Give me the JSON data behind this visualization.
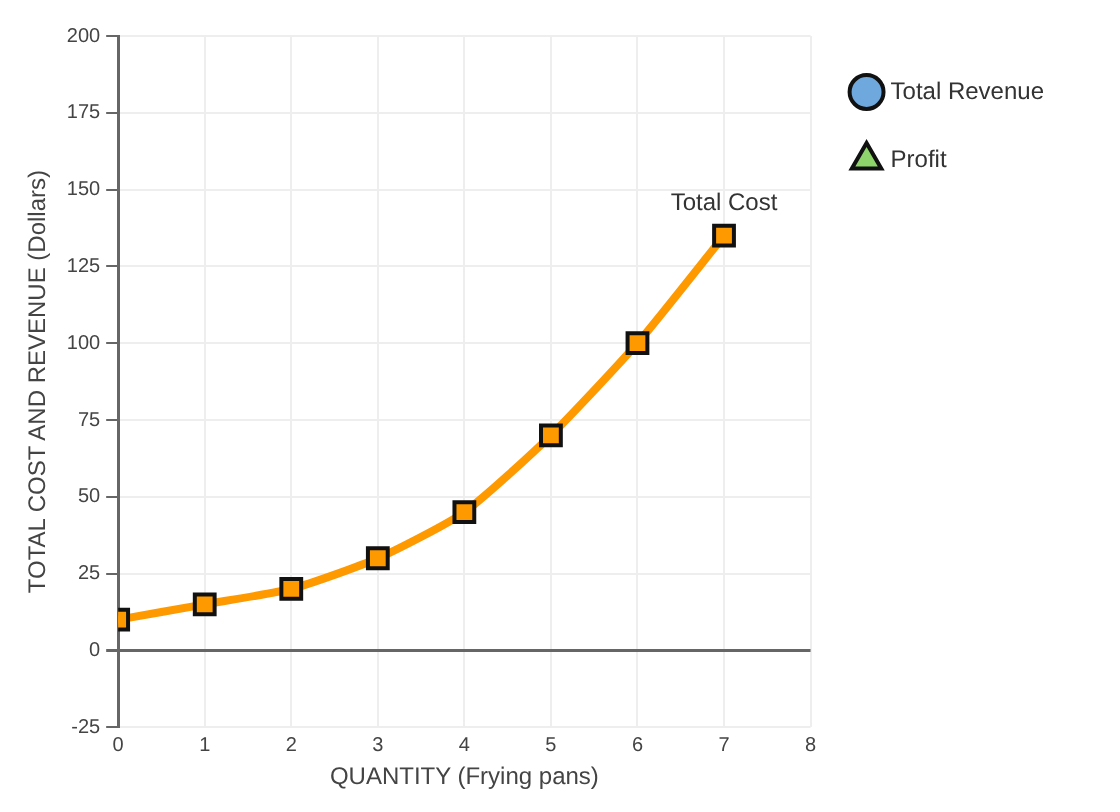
{
  "chart_data": {
    "type": "line",
    "xlabel": "QUANTITY (Frying pans)",
    "ylabel": "TOTAL COST AND REVENUE (Dollars)",
    "x": [
      0,
      1,
      2,
      3,
      4,
      5,
      6,
      7
    ],
    "series": [
      {
        "name": "Total Cost",
        "color": "#ff9900",
        "marker": "square",
        "values": [
          10,
          15,
          20,
          30,
          45,
          70,
          100,
          135
        ]
      },
      {
        "name": "Total Revenue",
        "color": "#6fa8dc",
        "marker": "circle",
        "values": [
          null,
          null,
          null,
          null,
          null,
          null,
          null,
          null
        ]
      },
      {
        "name": "Profit",
        "color": "#8ed56b",
        "marker": "triangle",
        "values": [
          null,
          null,
          null,
          null,
          null,
          null,
          null,
          null
        ]
      }
    ],
    "xlim": [
      0,
      8
    ],
    "xticks": [
      0,
      1,
      2,
      3,
      4,
      5,
      6,
      7,
      8
    ],
    "ylim": [
      -25,
      200
    ],
    "yticks": [
      -25,
      0,
      25,
      50,
      75,
      100,
      125,
      150,
      175,
      200
    ],
    "grid": true,
    "legend": "right",
    "line_style": "solid"
  }
}
